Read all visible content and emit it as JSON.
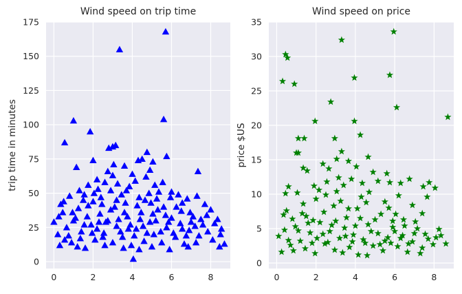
{
  "chart_data": [
    {
      "type": "scatter",
      "title": "Wind speed on trip time",
      "xlabel": "",
      "ylabel": "trip time in minutes",
      "xlim": [
        -0.4,
        9.0
      ],
      "ylim": [
        -5,
        175
      ],
      "xticks": [
        0,
        2,
        4,
        6,
        8
      ],
      "yticks": [
        0,
        25,
        50,
        75,
        100,
        125,
        150,
        175
      ],
      "grid": true,
      "marker": "triangle",
      "color": "#0000ff",
      "points": [
        [
          5.7,
          168
        ],
        [
          3.35,
          155
        ],
        [
          5.6,
          104
        ],
        [
          1.0,
          103
        ],
        [
          1.85,
          95
        ],
        [
          0.55,
          87
        ],
        [
          3.15,
          85
        ],
        [
          2.0,
          74
        ],
        [
          4.3,
          74
        ],
        [
          2.8,
          83
        ],
        [
          3.0,
          84
        ],
        [
          4.5,
          75
        ],
        [
          4.75,
          80
        ],
        [
          5.05,
          73
        ],
        [
          5.75,
          77
        ],
        [
          1.15,
          69
        ],
        [
          7.35,
          66
        ],
        [
          3.6,
          70
        ],
        [
          3.05,
          71
        ],
        [
          4.9,
          67
        ],
        [
          6.0,
          51
        ],
        [
          1.75,
          56
        ],
        [
          2.2,
          60
        ],
        [
          2.6,
          58
        ],
        [
          3.25,
          57
        ],
        [
          4.15,
          59
        ],
        [
          4.7,
          62
        ],
        [
          5.15,
          56
        ],
        [
          2.75,
          66
        ],
        [
          0.35,
          42
        ],
        [
          0.45,
          36
        ],
        [
          0.8,
          48
        ],
        [
          1.3,
          52
        ],
        [
          1.5,
          45
        ],
        [
          2.05,
          50
        ],
        [
          2.4,
          47
        ],
        [
          2.9,
          52
        ],
        [
          3.45,
          49
        ],
        [
          3.85,
          55
        ],
        [
          4.35,
          47
        ],
        [
          4.85,
          50
        ],
        [
          5.35,
          51
        ],
        [
          5.95,
          47
        ],
        [
          6.35,
          49
        ],
        [
          6.8,
          46
        ],
        [
          7.3,
          48
        ],
        [
          7.7,
          42
        ],
        [
          8.0,
          38
        ],
        [
          8.35,
          31
        ],
        [
          8.5,
          20
        ],
        [
          8.7,
          13
        ],
        [
          8.45,
          11
        ],
        [
          0.0,
          29
        ],
        [
          0.2,
          20
        ],
        [
          0.3,
          12
        ],
        [
          0.65,
          25
        ],
        [
          0.9,
          14
        ],
        [
          1.1,
          32
        ],
        [
          1.4,
          22
        ],
        [
          1.6,
          10
        ],
        [
          1.9,
          27
        ],
        [
          2.1,
          16
        ],
        [
          2.35,
          35
        ],
        [
          2.55,
          21
        ],
        [
          2.75,
          30
        ],
        [
          3.0,
          14
        ],
        [
          3.2,
          26
        ],
        [
          3.5,
          18
        ],
        [
          3.75,
          33
        ],
        [
          3.95,
          12
        ],
        [
          4.05,
          2
        ],
        [
          4.2,
          24
        ],
        [
          4.45,
          36
        ],
        [
          4.6,
          15
        ],
        [
          4.9,
          29
        ],
        [
          5.1,
          20
        ],
        [
          5.3,
          38
        ],
        [
          5.5,
          14
        ],
        [
          5.75,
          25
        ],
        [
          6.0,
          32
        ],
        [
          6.2,
          18
        ],
        [
          6.45,
          28
        ],
        [
          6.65,
          13
        ],
        [
          6.9,
          23
        ],
        [
          7.1,
          33
        ],
        [
          7.4,
          19
        ],
        [
          7.6,
          27
        ],
        [
          7.85,
          22
        ],
        [
          8.1,
          16
        ],
        [
          0.5,
          44
        ],
        [
          1.25,
          39
        ],
        [
          1.75,
          41
        ],
        [
          2.45,
          42
        ],
        [
          3.1,
          40
        ],
        [
          3.65,
          43
        ],
        [
          4.25,
          41
        ],
        [
          4.95,
          43
        ],
        [
          5.6,
          40
        ],
        [
          6.25,
          40
        ],
        [
          6.95,
          36
        ],
        [
          1.0,
          30
        ],
        [
          1.55,
          27
        ],
        [
          2.2,
          24
        ],
        [
          2.65,
          29
        ],
        [
          3.3,
          31
        ],
        [
          3.9,
          27
        ],
        [
          4.55,
          26
        ],
        [
          5.2,
          30
        ],
        [
          5.85,
          29
        ],
        [
          6.55,
          24
        ],
        [
          7.2,
          26
        ],
        [
          0.25,
          33
        ],
        [
          0.75,
          19
        ],
        [
          1.35,
          17
        ],
        [
          1.95,
          21
        ],
        [
          2.5,
          18
        ],
        [
          3.4,
          22
        ],
        [
          4.1,
          19
        ],
        [
          4.75,
          21
        ],
        [
          5.45,
          22
        ],
        [
          6.1,
          21
        ],
        [
          6.75,
          19
        ],
        [
          7.5,
          31
        ],
        [
          8.2,
          28
        ],
        [
          2.9,
          38
        ],
        [
          3.6,
          36
        ],
        [
          4.4,
          31
        ],
        [
          5.05,
          35
        ],
        [
          5.7,
          34
        ],
        [
          2.3,
          29
        ],
        [
          1.7,
          33
        ],
        [
          3.8,
          24
        ],
        [
          4.65,
          45
        ],
        [
          5.25,
          46
        ],
        [
          3.2,
          45
        ],
        [
          2.0,
          44
        ],
        [
          0.95,
          36
        ],
        [
          6.5,
          37
        ],
        [
          7.0,
          29
        ],
        [
          7.8,
          34
        ],
        [
          8.55,
          24
        ],
        [
          2.6,
          12
        ],
        [
          3.55,
          10
        ],
        [
          4.35,
          9
        ],
        [
          5.0,
          11
        ],
        [
          5.9,
          9
        ],
        [
          1.2,
          11
        ],
        [
          0.55,
          16
        ],
        [
          6.85,
          11
        ],
        [
          7.25,
          14
        ],
        [
          3.0,
          63
        ],
        [
          3.7,
          52
        ],
        [
          4.0,
          64
        ],
        [
          5.55,
          58
        ],
        [
          6.55,
          43
        ],
        [
          2.25,
          53
        ],
        [
          1.55,
          49
        ]
      ]
    },
    {
      "type": "scatter",
      "title": "Wind speed on price",
      "xlabel": "",
      "ylabel": "price $US",
      "xlim": [
        -0.4,
        9.0
      ],
      "ylim": [
        -0.8,
        35
      ],
      "xticks": [
        0,
        2,
        4,
        6,
        8
      ],
      "yticks": [
        0,
        5,
        10,
        15,
        20,
        25,
        30,
        35
      ],
      "grid": true,
      "marker": "star",
      "color": "#008000",
      "points": [
        [
          5.95,
          33.6
        ],
        [
          3.3,
          32.4
        ],
        [
          0.45,
          30.3
        ],
        [
          0.55,
          29.8
        ],
        [
          0.3,
          26.4
        ],
        [
          0.9,
          26.0
        ],
        [
          3.95,
          26.9
        ],
        [
          5.75,
          27.3
        ],
        [
          2.75,
          23.4
        ],
        [
          6.1,
          22.6
        ],
        [
          8.7,
          21.2
        ],
        [
          1.95,
          20.6
        ],
        [
          3.95,
          20.6
        ],
        [
          4.25,
          18.6
        ],
        [
          1.1,
          18.1
        ],
        [
          1.4,
          18.1
        ],
        [
          2.95,
          18.1
        ],
        [
          1.0,
          16.0
        ],
        [
          1.1,
          16.0
        ],
        [
          3.3,
          16.2
        ],
        [
          3.65,
          14.8
        ],
        [
          4.65,
          15.4
        ],
        [
          1.35,
          13.8
        ],
        [
          1.55,
          13.4
        ],
        [
          2.35,
          14.4
        ],
        [
          3.05,
          15.1
        ],
        [
          4.05,
          14.0
        ],
        [
          4.9,
          13.2
        ],
        [
          5.6,
          13.0
        ],
        [
          2.65,
          13.7
        ],
        [
          0.6,
          11.1
        ],
        [
          1.05,
          10.2
        ],
        [
          1.9,
          11.2
        ],
        [
          2.15,
          10.6
        ],
        [
          2.55,
          11.8
        ],
        [
          3.4,
          11.3
        ],
        [
          3.8,
          12.2
        ],
        [
          4.35,
          11.6
        ],
        [
          5.15,
          11.9
        ],
        [
          5.75,
          11.7
        ],
        [
          6.3,
          11.6
        ],
        [
          6.75,
          12.2
        ],
        [
          7.45,
          11.1
        ],
        [
          7.75,
          11.7
        ],
        [
          8.05,
          10.9
        ],
        [
          7.65,
          9.6
        ],
        [
          6.2,
          9.8
        ],
        [
          4.7,
          10.3
        ],
        [
          3.05,
          10.4
        ],
        [
          0.5,
          7.6
        ],
        [
          0.35,
          7.0
        ],
        [
          0.8,
          6.4
        ],
        [
          1.3,
          7.2
        ],
        [
          1.85,
          6.2
        ],
        [
          2.4,
          7.4
        ],
        [
          2.9,
          8.3
        ],
        [
          3.55,
          6.6
        ],
        [
          4.1,
          7.9
        ],
        [
          4.55,
          8.8
        ],
        [
          5.3,
          7.1
        ],
        [
          5.9,
          6.1
        ],
        [
          6.45,
          6.3
        ],
        [
          7.05,
          6.0
        ],
        [
          7.4,
          7.2
        ],
        [
          8.25,
          4.9
        ],
        [
          8.6,
          2.8
        ],
        [
          8.35,
          4.0
        ],
        [
          0.1,
          3.9
        ],
        [
          0.25,
          1.6
        ],
        [
          0.4,
          4.8
        ],
        [
          0.7,
          2.6
        ],
        [
          0.95,
          5.3
        ],
        [
          1.2,
          3.2
        ],
        [
          1.45,
          2.1
        ],
        [
          1.7,
          4.4
        ],
        [
          1.95,
          1.4
        ],
        [
          2.2,
          5.9
        ],
        [
          2.45,
          2.8
        ],
        [
          2.7,
          4.6
        ],
        [
          2.95,
          1.9
        ],
        [
          3.2,
          3.6
        ],
        [
          3.45,
          5.1
        ],
        [
          3.7,
          2.3
        ],
        [
          3.9,
          4.1
        ],
        [
          4.15,
          1.2
        ],
        [
          4.4,
          3.4
        ],
        [
          4.65,
          5.6
        ],
        [
          4.9,
          2.5
        ],
        [
          5.15,
          4.3
        ],
        [
          5.4,
          1.8
        ],
        [
          5.65,
          3.7
        ],
        [
          5.9,
          5.2
        ],
        [
          6.15,
          2.4
        ],
        [
          6.4,
          4.0
        ],
        [
          6.65,
          1.6
        ],
        [
          6.9,
          3.1
        ],
        [
          7.15,
          5.0
        ],
        [
          7.4,
          2.2
        ],
        [
          7.7,
          3.5
        ],
        [
          7.95,
          2.7
        ],
        [
          0.6,
          3.3
        ],
        [
          1.1,
          4.7
        ],
        [
          1.6,
          5.8
        ],
        [
          2.05,
          3.6
        ],
        [
          2.6,
          3.0
        ],
        [
          3.0,
          6.1
        ],
        [
          3.5,
          3.9
        ],
        [
          4.0,
          5.4
        ],
        [
          4.5,
          2.9
        ],
        [
          5.0,
          6.3
        ],
        [
          5.5,
          3.2
        ],
        [
          6.0,
          4.6
        ],
        [
          6.5,
          5.4
        ],
        [
          7.0,
          4.3
        ],
        [
          7.3,
          1.4
        ],
        [
          8.1,
          3.7
        ],
        [
          1.35,
          8.6
        ],
        [
          2.0,
          9.3
        ],
        [
          3.25,
          9.0
        ],
        [
          4.3,
          9.6
        ],
        [
          5.5,
          8.9
        ],
        [
          6.9,
          8.4
        ],
        [
          2.35,
          4.2
        ],
        [
          3.85,
          3.1
        ],
        [
          4.8,
          4.6
        ],
        [
          5.8,
          2.9
        ],
        [
          6.7,
          2.8
        ],
        [
          1.8,
          2.9
        ],
        [
          0.85,
          1.8
        ],
        [
          3.35,
          1.5
        ],
        [
          4.6,
          1.1
        ],
        [
          5.25,
          2.7
        ],
        [
          6.3,
          3.6
        ],
        [
          7.55,
          4.2
        ],
        [
          2.8,
          5.5
        ],
        [
          3.65,
          7.9
        ],
        [
          4.25,
          6.5
        ],
        [
          5.7,
          8.0
        ],
        [
          6.05,
          7.1
        ],
        [
          1.5,
          6.8
        ],
        [
          0.45,
          10.1
        ],
        [
          2.5,
          9.9
        ],
        [
          3.15,
          12.4
        ]
      ]
    }
  ]
}
